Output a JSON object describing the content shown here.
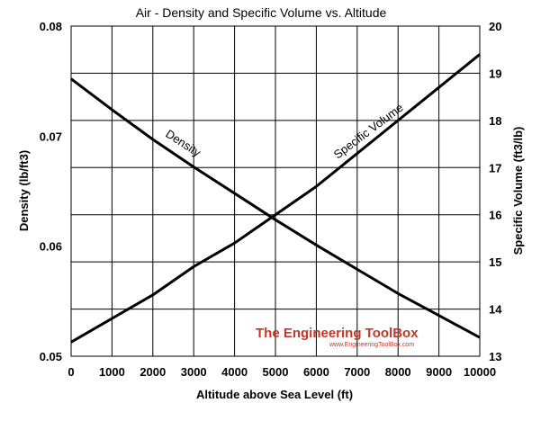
{
  "chart_data": {
    "type": "line",
    "title": "Air - Density and Specific Volume vs. Altitude",
    "xlabel": "Altitude above Sea Level (ft)",
    "ylabel": "Density (lb/ft3)",
    "y2label": "Specific Volume (ft3/lb)",
    "xlim": [
      0,
      10000
    ],
    "ylim": [
      0.05,
      0.08
    ],
    "y2lim": [
      13,
      20
    ],
    "xticks": [
      "0",
      "1000",
      "2000",
      "3000",
      "4000",
      "5000",
      "6000",
      "7000",
      "8000",
      "9000",
      "10000"
    ],
    "yticks": [
      "0.05",
      "0.06",
      "0.07",
      "0.08"
    ],
    "y2ticks": [
      "13",
      "14",
      "15",
      "16",
      "17",
      "18",
      "19",
      "20"
    ],
    "grid": true,
    "series": [
      {
        "name": "Density",
        "axis": "left",
        "x": [
          0,
          1000,
          2000,
          3000,
          4000,
          5000,
          6000,
          7000,
          8000,
          9000,
          10000
        ],
        "values": [
          0.0752,
          0.0724,
          0.0697,
          0.0672,
          0.0648,
          0.0624,
          0.0601,
          0.0579,
          0.0557,
          0.0537,
          0.0517
        ]
      },
      {
        "name": "Specific Volume",
        "axis": "right",
        "x": [
          0,
          1000,
          2000,
          3000,
          4000,
          5000,
          6000,
          7000,
          8000,
          9000,
          10000
        ],
        "values": [
          13.3,
          13.8,
          14.3,
          14.9,
          15.4,
          16.0,
          16.6,
          17.3,
          18.0,
          18.7,
          19.4
        ]
      }
    ],
    "annotations": [
      "Density",
      "Specific Volume"
    ]
  },
  "watermark": {
    "title": "The Engineering ToolBox",
    "url": "www.EngineeringToolBox.com",
    "color": "#c0392b"
  },
  "colors": {
    "line": "#000000",
    "grid": "#000000",
    "background": "#ffffff"
  }
}
